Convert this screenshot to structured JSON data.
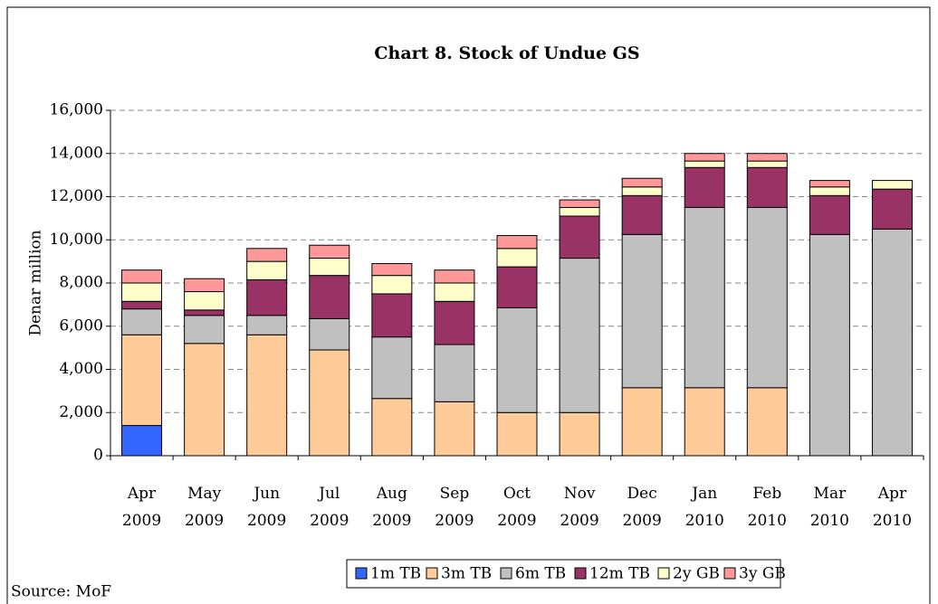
{
  "chart_data": {
    "type": "stacked_bar",
    "title": "Chart 8. Stock of Undue GS",
    "y_label": "Denar million",
    "source": "Source: MoF",
    "categories": [
      "Apr 2009",
      "May 2009",
      "Jun 2009",
      "Jul 2009",
      "Aug 2009",
      "Sep 2009",
      "Oct 2009",
      "Nov 2009",
      "Dec 2009",
      "Jan 2010",
      "Feb 2010",
      "Mar 2010",
      "Apr 2010"
    ],
    "series": [
      {
        "name": "1m TB",
        "color": "#3366ff",
        "values": [
          1400,
          0,
          0,
          0,
          0,
          0,
          0,
          0,
          0,
          0,
          0,
          0,
          0
        ]
      },
      {
        "name": "3m TB",
        "color": "#ffcc99",
        "values": [
          4200,
          5200,
          5600,
          4900,
          2650,
          2500,
          2000,
          2000,
          3150,
          3150,
          3150,
          0,
          0
        ]
      },
      {
        "name": "6m TB",
        "color": "#c0c0c0",
        "values": [
          1200,
          1300,
          900,
          1450,
          2850,
          2650,
          4850,
          7150,
          7100,
          8350,
          8350,
          10250,
          10500
        ]
      },
      {
        "name": "12m TB",
        "color": "#993366",
        "values": [
          350,
          250,
          1650,
          2000,
          2000,
          2000,
          1900,
          1950,
          1800,
          1850,
          1850,
          1800,
          1850
        ]
      },
      {
        "name": "2y GB",
        "color": "#ffffcc",
        "values": [
          850,
          850,
          850,
          800,
          850,
          850,
          850,
          400,
          400,
          300,
          300,
          400,
          400
        ]
      },
      {
        "name": "3y GB",
        "color": "#ff9999",
        "values": [
          600,
          600,
          600,
          600,
          550,
          600,
          600,
          350,
          400,
          350,
          350,
          300,
          0
        ]
      }
    ],
    "ylim": [
      0,
      16000
    ],
    "yticks": [
      0,
      {
        "value": 2000,
        "label": "2,000"
      },
      {
        "value": 4000,
        "label": "4,000"
      },
      {
        "value": 6000,
        "label": "6,000"
      },
      {
        "value": 8000,
        "label": "8,000"
      },
      {
        "value": 10000,
        "label": "10,000"
      },
      {
        "value": 12000,
        "label": "12,000"
      },
      {
        "value": 14000,
        "label": "14,000"
      },
      {
        "value": 16000,
        "label": "16,000"
      }
    ],
    "grid": true
  }
}
